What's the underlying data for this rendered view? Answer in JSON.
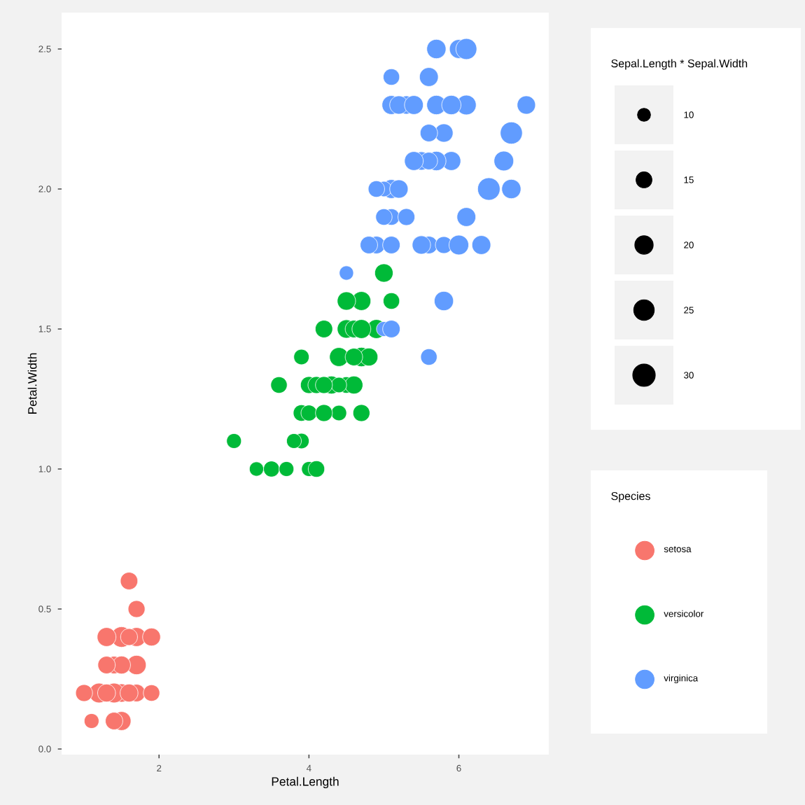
{
  "chart_data": {
    "type": "bubble",
    "xlabel": "Petal.Length",
    "ylabel": "Petal.Width",
    "xlim": [
      0.7,
      7.2
    ],
    "ylim": [
      -0.02,
      2.63
    ],
    "xticks": [
      2,
      4,
      6
    ],
    "yticks": [
      {
        "value": 0,
        "label": "0.0"
      },
      {
        "value": 0.5,
        "label": "0.5"
      },
      {
        "value": 1,
        "label": "1.0"
      },
      {
        "value": 1.5,
        "label": "1.5"
      },
      {
        "value": 2,
        "label": "2.0"
      },
      {
        "value": 2.5,
        "label": "2.5"
      }
    ],
    "marker": "circle",
    "legend": "right",
    "legend_title": "Species",
    "annotations": [
      "Sepal.Length * Sepal.Width"
    ],
    "size_legend": [
      10,
      15,
      20,
      25,
      30
    ],
    "series": [
      {
        "name": "setosa",
        "color": "#f8766d",
        "x": [
          null,
          null,
          null,
          null,
          null,
          1.7,
          null,
          null,
          null,
          null,
          1.5,
          null,
          null,
          1.1,
          1.2,
          1.5,
          1.3,
          1.4,
          1.7,
          1.5,
          1.7,
          null,
          1.0,
          1.7,
          1.9,
          null,
          1.6,
          null,
          null,
          null,
          null,
          null,
          1.5,
          1.4,
          null,
          null,
          1.3,
          1.4,
          null,
          null,
          1.3,
          null,
          null,
          1.6,
          1.9,
          null,
          1.6,
          null,
          null,
          null
        ],
        "values": [
          null,
          null,
          null,
          null,
          null,
          0.4,
          null,
          null,
          null,
          null,
          0.2,
          null,
          null,
          0.1,
          0.2,
          0.4,
          0.4,
          0.3,
          0.3,
          0.3,
          0.2,
          null,
          0.2,
          0.5,
          0.2,
          null,
          0.4,
          null,
          null,
          null,
          null,
          null,
          0.1,
          0.2,
          null,
          null,
          0.2,
          0.1,
          null,
          null,
          0.3,
          null,
          null,
          0.6,
          0.4,
          null,
          0.2,
          null,
          null,
          null
        ],
        "sizes": [
          null,
          null,
          null,
          null,
          null,
          21,
          null,
          null,
          null,
          null,
          20,
          null,
          null,
          13,
          23,
          25,
          21,
          18,
          22,
          19,
          18,
          null,
          17,
          17,
          16,
          null,
          17,
          null,
          null,
          null,
          null,
          null,
          21,
          23,
          null,
          null,
          19,
          18,
          null,
          null,
          18,
          null,
          null,
          18,
          19,
          null,
          19,
          null,
          null,
          null
        ]
      },
      {
        "name": "versicolor",
        "color": "#00ba38",
        "x": [
          4.7,
          4.5,
          4.9,
          null,
          4.6,
          4.5,
          4.7,
          3.3,
          4.6,
          3.9,
          null,
          4.2,
          4.0,
          null,
          3.6,
          4.4,
          null,
          4.1,
          null,
          3.9,
          null,
          4.0,
          null,
          4.7,
          4.3,
          null,
          4.8,
          5.0,
          null,
          3.5,
          3.8,
          3.7,
          3.9,
          5.1,
          null,
          4.5,
          4.7,
          4.4,
          4.1,
          null,
          4.4,
          4.6,
          4.0,
          null,
          null,
          4.2,
          4.2,
          null,
          3.0,
          null
        ],
        "values": [
          1.4,
          1.5,
          1.5,
          null,
          1.5,
          1.3,
          1.6,
          1.0,
          1.3,
          1.4,
          null,
          1.5,
          1.0,
          null,
          1.3,
          1.4,
          null,
          1.0,
          null,
          1.1,
          null,
          1.3,
          null,
          1.2,
          1.3,
          null,
          1.4,
          1.7,
          null,
          1.0,
          1.1,
          1.0,
          1.2,
          1.6,
          null,
          1.6,
          1.5,
          1.3,
          1.3,
          null,
          1.2,
          1.4,
          1.2,
          null,
          null,
          1.2,
          1.3,
          null,
          1.1,
          null
        ],
        "sizes": [
          22,
          20,
          21,
          null,
          18,
          16,
          21,
          12,
          19,
          14,
          null,
          18,
          13,
          null,
          16,
          21,
          null,
          16,
          null,
          14,
          null,
          17,
          null,
          17,
          19,
          null,
          19,
          20,
          null,
          15,
          13,
          13,
          16,
          16,
          null,
          20,
          21,
          14,
          17,
          null,
          14,
          18,
          15,
          null,
          null,
          17,
          17,
          null,
          13,
          null
        ]
      },
      {
        "name": "virginica",
        "color": "#619cff",
        "x": [
          6.0,
          5.1,
          5.9,
          5.6,
          5.8,
          6.6,
          4.5,
          6.3,
          5.8,
          6.1,
          5.1,
          5.3,
          5.5,
          5.0,
          5.1,
          5.3,
          5.5,
          6.7,
          6.9,
          5.0,
          5.7,
          4.9,
          6.7,
          null,
          5.7,
          6.0,
          null,
          4.9,
          5.6,
          5.8,
          6.1,
          6.4,
          5.6,
          5.1,
          5.6,
          6.1,
          5.6,
          null,
          4.8,
          5.4,
          null,
          5.1,
          null,
          5.9,
          5.7,
          5.2,
          5.0,
          5.2,
          5.4,
          5.1
        ],
        "values": [
          2.5,
          1.9,
          2.1,
          1.8,
          2.2,
          2.1,
          1.7,
          1.8,
          1.8,
          2.5,
          2.0,
          1.9,
          2.1,
          2.0,
          2.4,
          2.3,
          1.8,
          2.2,
          2.3,
          1.5,
          2.3,
          2.0,
          2.0,
          null,
          2.1,
          1.8,
          null,
          1.8,
          2.1,
          1.6,
          1.9,
          2.0,
          2.2,
          1.5,
          1.4,
          2.3,
          2.4,
          null,
          1.8,
          2.1,
          null,
          2.3,
          null,
          2.3,
          2.5,
          2.3,
          1.9,
          2.0,
          2.3,
          1.8
        ],
        "sizes": [
          21,
          16,
          21,
          18,
          20,
          23,
          12,
          21,
          17,
          26,
          21,
          17,
          20,
          14,
          16,
          20,
          20,
          29,
          20,
          13,
          22,
          16,
          22,
          null,
          22,
          23,
          null,
          18,
          18,
          22,
          21,
          30,
          18,
          18,
          16,
          23,
          21,
          null,
          18,
          21,
          null,
          21,
          null,
          22,
          22,
          20,
          16,
          20,
          21,
          18
        ]
      }
    ]
  }
}
